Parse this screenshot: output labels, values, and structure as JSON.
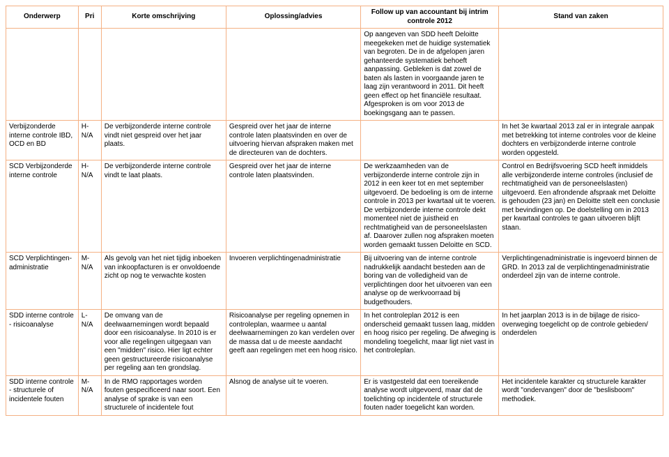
{
  "table": {
    "headers": {
      "c1": "Onderwerp",
      "c2": "Pri",
      "c3": "Korte omschrijving",
      "c4": "Oplossing/advies",
      "c5": "Follow up van accountant bij intrim controle 2012",
      "c6": "Stand van zaken"
    },
    "rows": [
      {
        "c1": "",
        "c2": "",
        "c3": "",
        "c4": "",
        "c5": "Op aangeven van SDD heeft Deloitte meegekeken met de huidige systematiek van begroten. De in de afgelopen jaren gehanteerde systematiek behoeft aanpassing. Gebleken is dat zowel de baten als lasten in voorgaande jaren te laag zijn verantwoord in 2011. Dit heeft geen effect op het financiële resultaat. Afgesproken is om voor 2013 de boekingsgang aan te passen.",
        "c6": ""
      },
      {
        "c1": "Verbijzonderde interne controle IBD, OCD en BD",
        "c2": "H-N/A",
        "c3": "De verbijzonderde interne controle vindt niet gespreid over het jaar plaats.",
        "c4": "Gespreid over het jaar de interne controle laten plaatsvinden en over de uitvoering hiervan afspraken maken met de directeuren van de dochters.",
        "c5": "",
        "c6": "In het 3e kwartaal 2013 zal er in integrale aanpak met betrekking tot interne controles voor de kleine dochters en verbijzonderde interne controle worden opgesteld."
      },
      {
        "c1": "SCD Verbijzonderde interne controle",
        "c2": "H-N/A",
        "c3": "De verbijzonderde interne controle vindt te laat plaats.",
        "c4": "Gespreid over het jaar de interne controle laten plaatsvinden.",
        "c5": "De werkzaamheden van de verbijzonderde interne controle zijn in 2012 in een keer tot en met september uitgevoerd. De bedoeling is om de interne controle in 2013 per kwartaal uit te voeren. De verbijzonderde interne controle dekt momenteel niet de juistheid en rechtmatigheid van de personeelslasten af. Daarover zullen nog afspraken moeten worden gemaakt tussen Deloitte en SCD.",
        "c6": "Control en Bedrijfsvoering SCD heeft inmiddels alle verbijzonderde interne controles (inclusief de rechtmatigheid van de personeelslasten) uitgevoerd. Een afrondende afspraak met Deloitte is gehouden (23 jan) en Deloitte stelt een conclusie met bevindingen op. De doelstelling om in 2013 per kwartaal controles te gaan uitvoeren blijft staan."
      },
      {
        "c1": "SCD Verplichtingen-administratie",
        "c2": "M-N/A",
        "c3": "Als gevolg van het niet tijdig inboeken van inkoopfacturen is er onvoldoende zicht op nog te verwachte kosten",
        "c4": "Invoeren verplichtingenadministratie",
        "c5": "Bij uitvoering van de interne controle nadrukkelijk aandacht besteden aan de boring van de volledigheid van de verplichtingen door het uitvoeren van een analyse op de werkvoorraad bij budgethouders.",
        "c6": "Verplichtingenadministratie is ingevoerd binnen de GRD. In 2013 zal de verplichtingenadministratie onderdeel zijn van de interne controle."
      },
      {
        "c1": "SDD interne controle - risicoanalyse",
        "c2": "L-N/A",
        "c3": "De omvang van de deelwaarnemingen wordt bepaald door een risicoanalyse. In 2010 is er voor alle regelingen uitgegaan van een \"midden\" risico. Hier ligt echter geen gestructureerde risicoanalyse per regeling aan ten grondslag.",
        "c4": "Risicoanalyse per regeling opnemen in controleplan, waarmee u aantal deelwaarnemingen zo kan verdelen over de massa dat u de meeste aandacht geeft aan regelingen met een hoog risico.",
        "c5": "In het controleplan 2012 is een onderscheid gemaakt tussen laag, midden en hoog risico per regeling. De afweging is mondeling toegelicht, maar ligt niet vast in het controleplan.",
        "c6": "In het jaarplan 2013 is in de bijlage de risico-overweging toegelicht op de controle gebieden/ onderdelen"
      },
      {
        "c1": "SDD interne controle - structurele of incidentele fouten",
        "c2": "M-N/A",
        "c3": "In de RMO rapportages worden fouten gespecificeerd naar soort. Een analyse of sprake is van een structurele of incidentele fout",
        "c4": "Alsnog de analyse uit te voeren.",
        "c5": "Er is vastgesteld dat een toereikende analyse wordt uitgevoerd, maar dat de toelichting op incidentele of structurele fouten nader toegelicht kan worden.",
        "c6": "Het incidentele karakter cq structurele karakter wordt \"ondervangen\" door de \"beslisboom\" methodiek."
      }
    ]
  }
}
